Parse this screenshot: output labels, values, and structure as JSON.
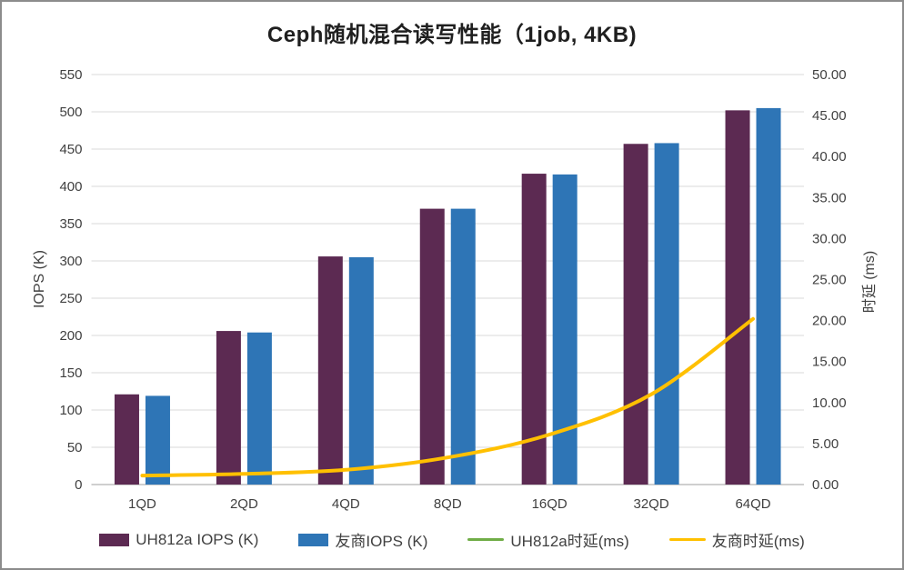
{
  "window": {
    "background_color": "#ffffff",
    "border_color": "#8c8c8c"
  },
  "chart_data": {
    "type": "bar",
    "subtype": "combo bar + smooth line, dual axis",
    "title": "Ceph随机混合读写性能（1job, 4KB)",
    "categories": [
      "1QD",
      "2QD",
      "4QD",
      "8QD",
      "16QD",
      "32QD",
      "64QD"
    ],
    "bar_series": [
      {
        "name": "UH812a IOPS (K)",
        "color": "#5C2A52",
        "axis": "left",
        "values": [
          121,
          206,
          306,
          370,
          417,
          457,
          502
        ]
      },
      {
        "name": "友商IOPS (K)",
        "color": "#2E75B6",
        "axis": "left",
        "values": [
          119,
          204,
          305,
          370,
          416,
          458,
          505
        ]
      }
    ],
    "line_series": [
      {
        "name": "UH812a时延(ms)",
        "color": "#70AD47",
        "axis": "right",
        "values": [
          1.1,
          1.3,
          1.8,
          3.3,
          6.1,
          11.0,
          20.2
        ],
        "note": "curve coincides with 友商时延(ms) and is hidden beneath it"
      },
      {
        "name": "友商时延(ms)",
        "color": "#FFC000",
        "axis": "right",
        "values": [
          1.1,
          1.3,
          1.8,
          3.3,
          6.1,
          11.0,
          20.2
        ]
      }
    ],
    "left_axis": {
      "label": "IOPS (K)",
      "min": 0,
      "max": 550,
      "step": 50,
      "tick_labels": [
        "0",
        "50",
        "100",
        "150",
        "200",
        "250",
        "300",
        "350",
        "400",
        "450",
        "500",
        "550"
      ]
    },
    "right_axis": {
      "label": "时延 (ms)",
      "min": 0,
      "max": 50,
      "step": 5,
      "tick_labels": [
        "0.00",
        "5.00",
        "10.00",
        "15.00",
        "20.00",
        "25.00",
        "30.00",
        "35.00",
        "40.00",
        "45.00",
        "50.00"
      ]
    },
    "grid": true,
    "gridline_color": "#D9D9D9",
    "axis_line_color": "#BFBFBF",
    "tick_text_color": "#404040",
    "legend_position": "bottom"
  }
}
